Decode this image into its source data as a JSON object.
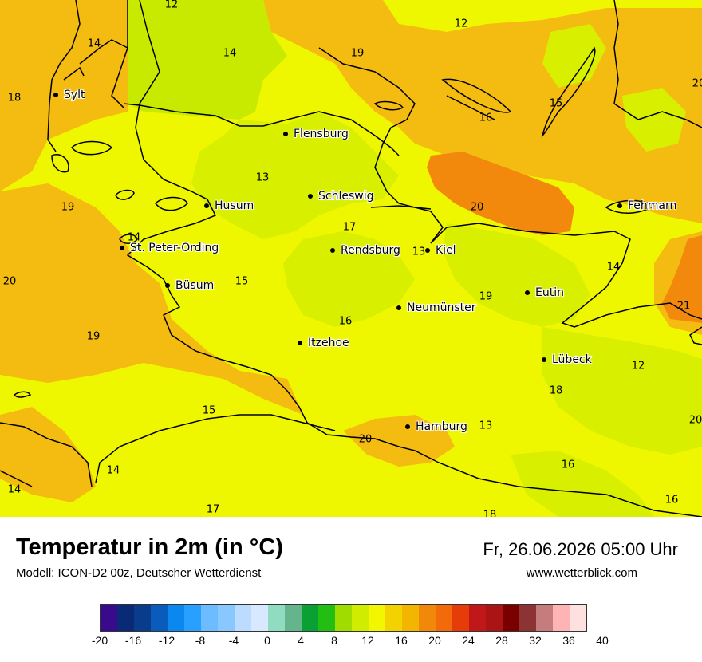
{
  "map": {
    "colors": {
      "t12": "#c8ea00",
      "t14": "#d8ef00",
      "t16": "#eef700",
      "t18": "#f2f200",
      "t20": "#f4bb10",
      "t22": "#f2890c",
      "coast": "#000000"
    },
    "cities": [
      {
        "name": "Sylt"
      },
      {
        "name": "Flensburg"
      },
      {
        "name": "Schleswig"
      },
      {
        "name": "Husum"
      },
      {
        "name": "St. Peter-Ording"
      },
      {
        "name": "Rendsburg"
      },
      {
        "name": "Kiel"
      },
      {
        "name": "Büsum"
      },
      {
        "name": "Fehmarn"
      },
      {
        "name": "Eutin"
      },
      {
        "name": "Neumünster"
      },
      {
        "name": "Itzehoe"
      },
      {
        "name": "Lübeck"
      },
      {
        "name": "Hamburg"
      }
    ],
    "values": [
      "12",
      "14",
      "14",
      "12",
      "19",
      "18",
      "15",
      "16",
      "20",
      "13",
      "19",
      "17",
      "20",
      "14",
      "13",
      "15",
      "14",
      "20",
      "19",
      "16",
      "19",
      "21",
      "12",
      "18",
      "15",
      "20",
      "13",
      "20",
      "14",
      "16",
      "14",
      "17",
      "18",
      "16"
    ]
  },
  "footer": {
    "title": "Temperatur in 2m (in °C)",
    "model": "Modell: ICON-D2 00z, Deutscher Wetterdienst",
    "datetime": "Fr, 26.06.2026 05:00 Uhr",
    "website": "www.wetterblick.com"
  },
  "legend": {
    "colors": [
      "#3a0a8c",
      "#0a2a78",
      "#0a3c8c",
      "#0a5cbc",
      "#0a88f0",
      "#28a0ff",
      "#6cbcff",
      "#88c8ff",
      "#bcdcff",
      "#d8e8ff",
      "#90dcc0",
      "#64b48c",
      "#0aa034",
      "#22be12",
      "#a0dc00",
      "#d0ec00",
      "#f2f700",
      "#f2d200",
      "#f2b600",
      "#f2880a",
      "#f26a0a",
      "#e63c0a",
      "#c01818",
      "#aa1414",
      "#7a0000",
      "#8c3434",
      "#c47c7c",
      "#ffb4b4",
      "#ffe0e0"
    ],
    "ticks": [
      "-20",
      "-16",
      "-12",
      "-8",
      "-4",
      "0",
      "4",
      "8",
      "12",
      "16",
      "20",
      "24",
      "28",
      "32",
      "36",
      "40"
    ]
  }
}
